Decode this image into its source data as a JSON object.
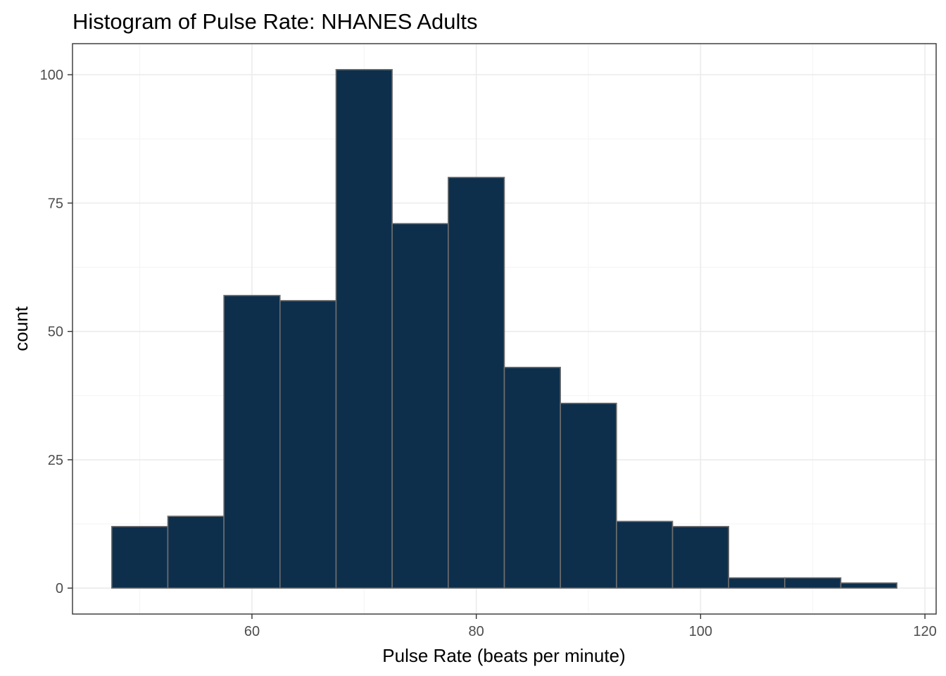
{
  "chart_data": {
    "type": "bar",
    "subtype": "histogram",
    "title": "Histogram of Pulse Rate: NHANES Adults",
    "xlabel": "Pulse Rate (beats per minute)",
    "ylabel": "count",
    "bin_width": 5,
    "bins": [
      {
        "x0": 47.5,
        "x1": 52.5,
        "count": 12
      },
      {
        "x0": 52.5,
        "x1": 57.5,
        "count": 14
      },
      {
        "x0": 57.5,
        "x1": 62.5,
        "count": 57
      },
      {
        "x0": 62.5,
        "x1": 67.5,
        "count": 56
      },
      {
        "x0": 67.5,
        "x1": 72.5,
        "count": 101
      },
      {
        "x0": 72.5,
        "x1": 77.5,
        "count": 71
      },
      {
        "x0": 77.5,
        "x1": 82.5,
        "count": 80
      },
      {
        "x0": 82.5,
        "x1": 87.5,
        "count": 43
      },
      {
        "x0": 87.5,
        "x1": 92.5,
        "count": 36
      },
      {
        "x0": 92.5,
        "x1": 97.5,
        "count": 13
      },
      {
        "x0": 97.5,
        "x1": 102.5,
        "count": 12
      },
      {
        "x0": 102.5,
        "x1": 107.5,
        "count": 2
      },
      {
        "x0": 107.5,
        "x1": 112.5,
        "count": 2
      },
      {
        "x0": 112.5,
        "x1": 117.5,
        "count": 1
      }
    ],
    "xlim": [
      44,
      121
    ],
    "ylim": [
      -5.05,
      106.05
    ],
    "x_ticks": [
      60,
      80,
      100,
      120
    ],
    "y_ticks": [
      0,
      25,
      50,
      75,
      100
    ],
    "grid": true,
    "legend": "none",
    "bar_fill": "#0d2f4c",
    "bar_outline": "#6e6e6e"
  }
}
